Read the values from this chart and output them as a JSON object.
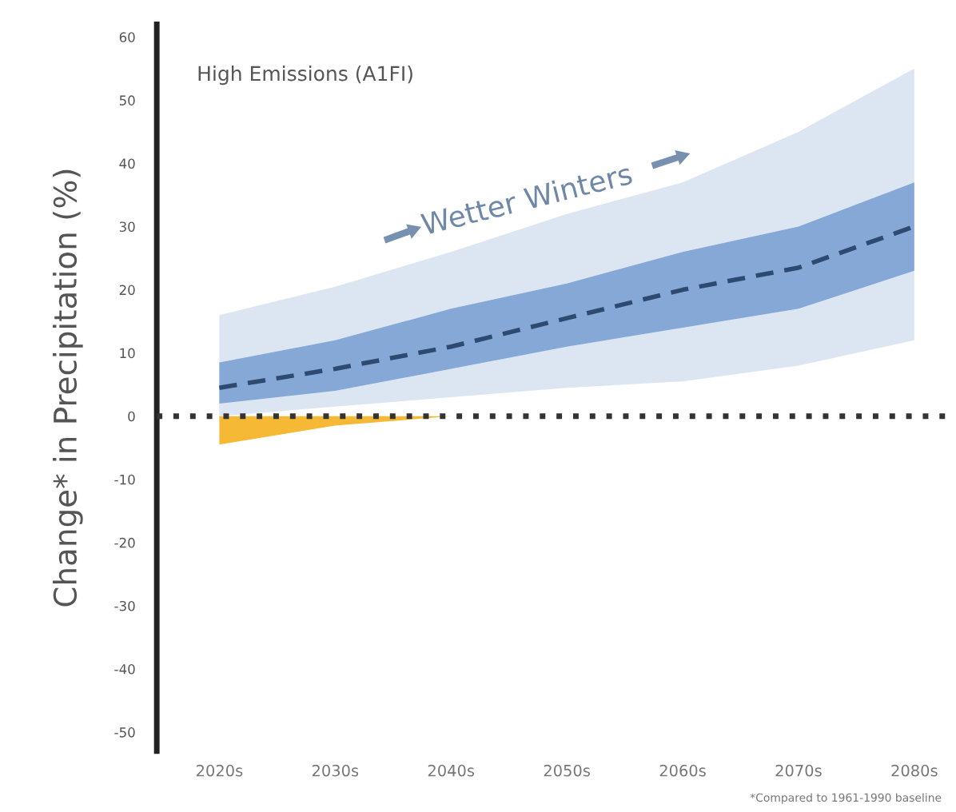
{
  "chart_data": {
    "type": "line",
    "title": "High Emissions (A1FI)",
    "ylabel": "Change* in Precipitation (%)",
    "categories": [
      "2020s",
      "2030s",
      "2040s",
      "2050s",
      "2060s",
      "2070s",
      "2080s"
    ],
    "series": [
      {
        "color": "#dce6f3",
        "values": [
          null,
          null,
          null,
          null,
          null,
          null,
          null
        ],
        "lower": [
          0,
          1.5,
          3,
          4.5,
          5.5,
          8,
          12
        ],
        "upper": [
          16,
          20.5,
          26,
          32,
          37,
          45,
          55
        ]
      },
      {
        "color": "#f5b935",
        "values": [
          null,
          null,
          null,
          null,
          null,
          null,
          null
        ],
        "lower": [
          -4.5,
          -1.5,
          0,
          null,
          null,
          null,
          null
        ],
        "upper": [
          0,
          0,
          0,
          null,
          null,
          null,
          null
        ]
      },
      {
        "color": "#86a8d6",
        "values": [
          null,
          null,
          null,
          null,
          null,
          null,
          null
        ],
        "lower": [
          2,
          4,
          7.5,
          11,
          14,
          17,
          23
        ],
        "upper": [
          8.5,
          12,
          17,
          21,
          26,
          30,
          37
        ]
      },
      {
        "color": "#2e4a70",
        "line_style": "dashed",
        "values": [
          4.5,
          7.5,
          11,
          15.5,
          20,
          23.5,
          30
        ]
      }
    ],
    "ylim": [
      -53,
      62
    ],
    "yticks": [
      -50,
      -40,
      -30,
      -20,
      -10,
      0,
      10,
      20,
      30,
      40,
      50,
      60
    ],
    "ref_lines": [
      {
        "axis": "y",
        "value": 0,
        "color": "#333333",
        "line_style": "dotted"
      }
    ],
    "annotations": [
      "Wetter Winters",
      "*Compared to 1961-1990 baseline"
    ],
    "grid": false,
    "legend": false
  }
}
